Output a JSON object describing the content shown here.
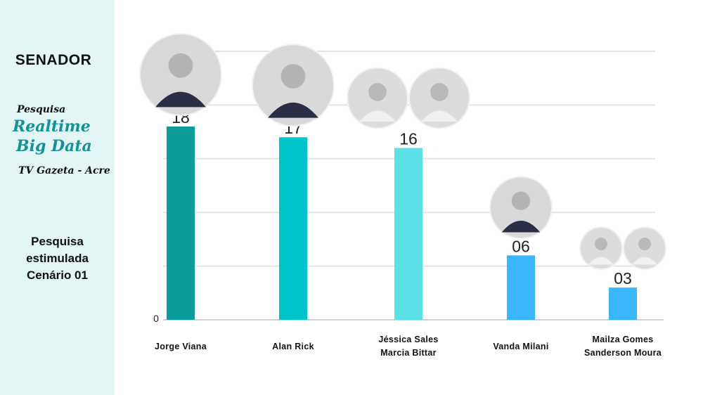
{
  "sidebar": {
    "title": "SENADOR",
    "brand_small": "Pesquisa",
    "brand_line1": "Realtime",
    "brand_line2": "Big Data",
    "tv": "TV Gazeta - Acre",
    "survey_line1": "Pesquisa",
    "survey_line2": "estimulada",
    "survey_line3": "Cenário 01"
  },
  "chart_data": {
    "type": "bar",
    "categories": [
      "Jorge Viana",
      "Alan Rick",
      "Jéssica Sales / Marcia Bittar",
      "Vanda Milani",
      "Mailza Gomes / Sanderson Moura"
    ],
    "category_lines": [
      [
        "Jorge Viana"
      ],
      [
        "Alan Rick"
      ],
      [
        "Jéssica Sales",
        "Marcia Bittar"
      ],
      [
        "Vanda Milani"
      ],
      [
        "Mailza Gomes",
        "Sanderson Moura"
      ]
    ],
    "values": [
      18,
      17,
      16,
      6,
      3
    ],
    "data_labels": [
      "18",
      "17",
      "16",
      "06",
      "03"
    ],
    "y_tick_label": "0",
    "ylim": [
      0,
      25
    ],
    "grid": true,
    "colors": [
      "#0c9c9c",
      "#00c4cc",
      "#5ce1e6",
      "#38b6ff",
      "#38b6ff"
    ],
    "photos_per_bar": [
      1,
      1,
      2,
      1,
      2
    ]
  }
}
